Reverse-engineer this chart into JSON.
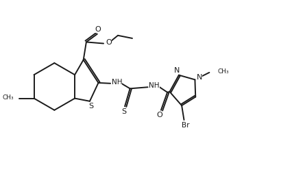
{
  "bg_color": "#ffffff",
  "line_color": "#1a1a1a",
  "line_width": 1.4,
  "fig_width": 4.26,
  "fig_height": 2.57,
  "dpi": 100,
  "xlim": [
    0,
    10
  ],
  "ylim": [
    0,
    6
  ]
}
